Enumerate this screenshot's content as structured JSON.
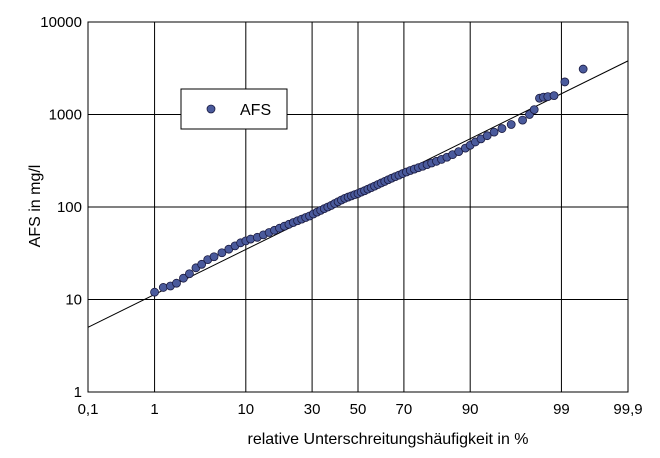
{
  "chart_data": {
    "type": "scatter",
    "xlabel": "relative Unterschreitungshäufigkeit in %",
    "ylabel": "AFS in mg/l",
    "x_scale": "normal-probability",
    "y_scale": "log",
    "xlim": [
      0.1,
      99.9
    ],
    "ylim": [
      1,
      10000
    ],
    "grid": true,
    "legend_position": "upper-left",
    "x_ticks": [
      {
        "value": 0.1,
        "label": "0,1"
      },
      {
        "value": 1,
        "label": "1"
      },
      {
        "value": 10,
        "label": "10"
      },
      {
        "value": 30,
        "label": "30"
      },
      {
        "value": 50,
        "label": "50"
      },
      {
        "value": 70,
        "label": "70"
      },
      {
        "value": 90,
        "label": "90"
      },
      {
        "value": 99,
        "label": "99"
      },
      {
        "value": 99.9,
        "label": "99,9"
      }
    ],
    "y_ticks": [
      {
        "value": 1,
        "label": "1"
      },
      {
        "value": 10,
        "label": "10"
      },
      {
        "value": 100,
        "label": "100"
      },
      {
        "value": 1000,
        "label": "1000"
      },
      {
        "value": 10000,
        "label": "10000"
      }
    ],
    "series": [
      {
        "name": "AFS",
        "color": "#4a5a9c",
        "points": [
          [
            1.0,
            12
          ],
          [
            1.3,
            13.5
          ],
          [
            1.6,
            14
          ],
          [
            1.9,
            15
          ],
          [
            2.3,
            17
          ],
          [
            2.7,
            19
          ],
          [
            3.2,
            22
          ],
          [
            3.7,
            24
          ],
          [
            4.3,
            27
          ],
          [
            5.0,
            29
          ],
          [
            6.0,
            32
          ],
          [
            7.0,
            35
          ],
          [
            8.0,
            38
          ],
          [
            9.0,
            41
          ],
          [
            10.0,
            43
          ],
          [
            11.0,
            45
          ],
          [
            12.5,
            47
          ],
          [
            14.0,
            50
          ],
          [
            15.5,
            53
          ],
          [
            17.0,
            56
          ],
          [
            18.5,
            59
          ],
          [
            20.0,
            62
          ],
          [
            21.5,
            65
          ],
          [
            23.0,
            68
          ],
          [
            24.5,
            71
          ],
          [
            26.0,
            74
          ],
          [
            27.5,
            77
          ],
          [
            29.0,
            80
          ],
          [
            30.5,
            84
          ],
          [
            32.0,
            88
          ],
          [
            33.5,
            92
          ],
          [
            35.0,
            96
          ],
          [
            36.5,
            100
          ],
          [
            38.0,
            104
          ],
          [
            39.5,
            109
          ],
          [
            41.0,
            114
          ],
          [
            42.5,
            119
          ],
          [
            44.0,
            124
          ],
          [
            45.5,
            128
          ],
          [
            47.0,
            132
          ],
          [
            48.5,
            136
          ],
          [
            50.0,
            140
          ],
          [
            51.5,
            145
          ],
          [
            53.0,
            150
          ],
          [
            54.5,
            156
          ],
          [
            56.0,
            162
          ],
          [
            57.5,
            168
          ],
          [
            59.0,
            175
          ],
          [
            60.5,
            182
          ],
          [
            62.0,
            189
          ],
          [
            63.5,
            197
          ],
          [
            65.0,
            205
          ],
          [
            66.5,
            213
          ],
          [
            68.0,
            221
          ],
          [
            69.5,
            230
          ],
          [
            71.0,
            239
          ],
          [
            72.5,
            248
          ],
          [
            74.0,
            257
          ],
          [
            75.5,
            266
          ],
          [
            77.0,
            276
          ],
          [
            78.5,
            287
          ],
          [
            80.0,
            299
          ],
          [
            81.5,
            312
          ],
          [
            83.0,
            327
          ],
          [
            84.5,
            345
          ],
          [
            86.0,
            368
          ],
          [
            87.5,
            397
          ],
          [
            89.0,
            433
          ],
          [
            90.0,
            465
          ],
          [
            91.0,
            505
          ],
          [
            92.0,
            545
          ],
          [
            93.0,
            590
          ],
          [
            94.0,
            645
          ],
          [
            95.0,
            705
          ],
          [
            96.0,
            780
          ],
          [
            97.0,
            870
          ],
          [
            97.5,
            1000
          ],
          [
            97.8,
            1130
          ],
          [
            98.1,
            1500
          ],
          [
            98.3,
            1540
          ],
          [
            98.5,
            1560
          ],
          [
            98.75,
            1600
          ],
          [
            99.1,
            2250
          ],
          [
            99.5,
            3100
          ]
        ]
      }
    ],
    "fit_line": {
      "points": [
        [
          0.1,
          5
        ],
        [
          99.9,
          3800
        ]
      ]
    }
  }
}
